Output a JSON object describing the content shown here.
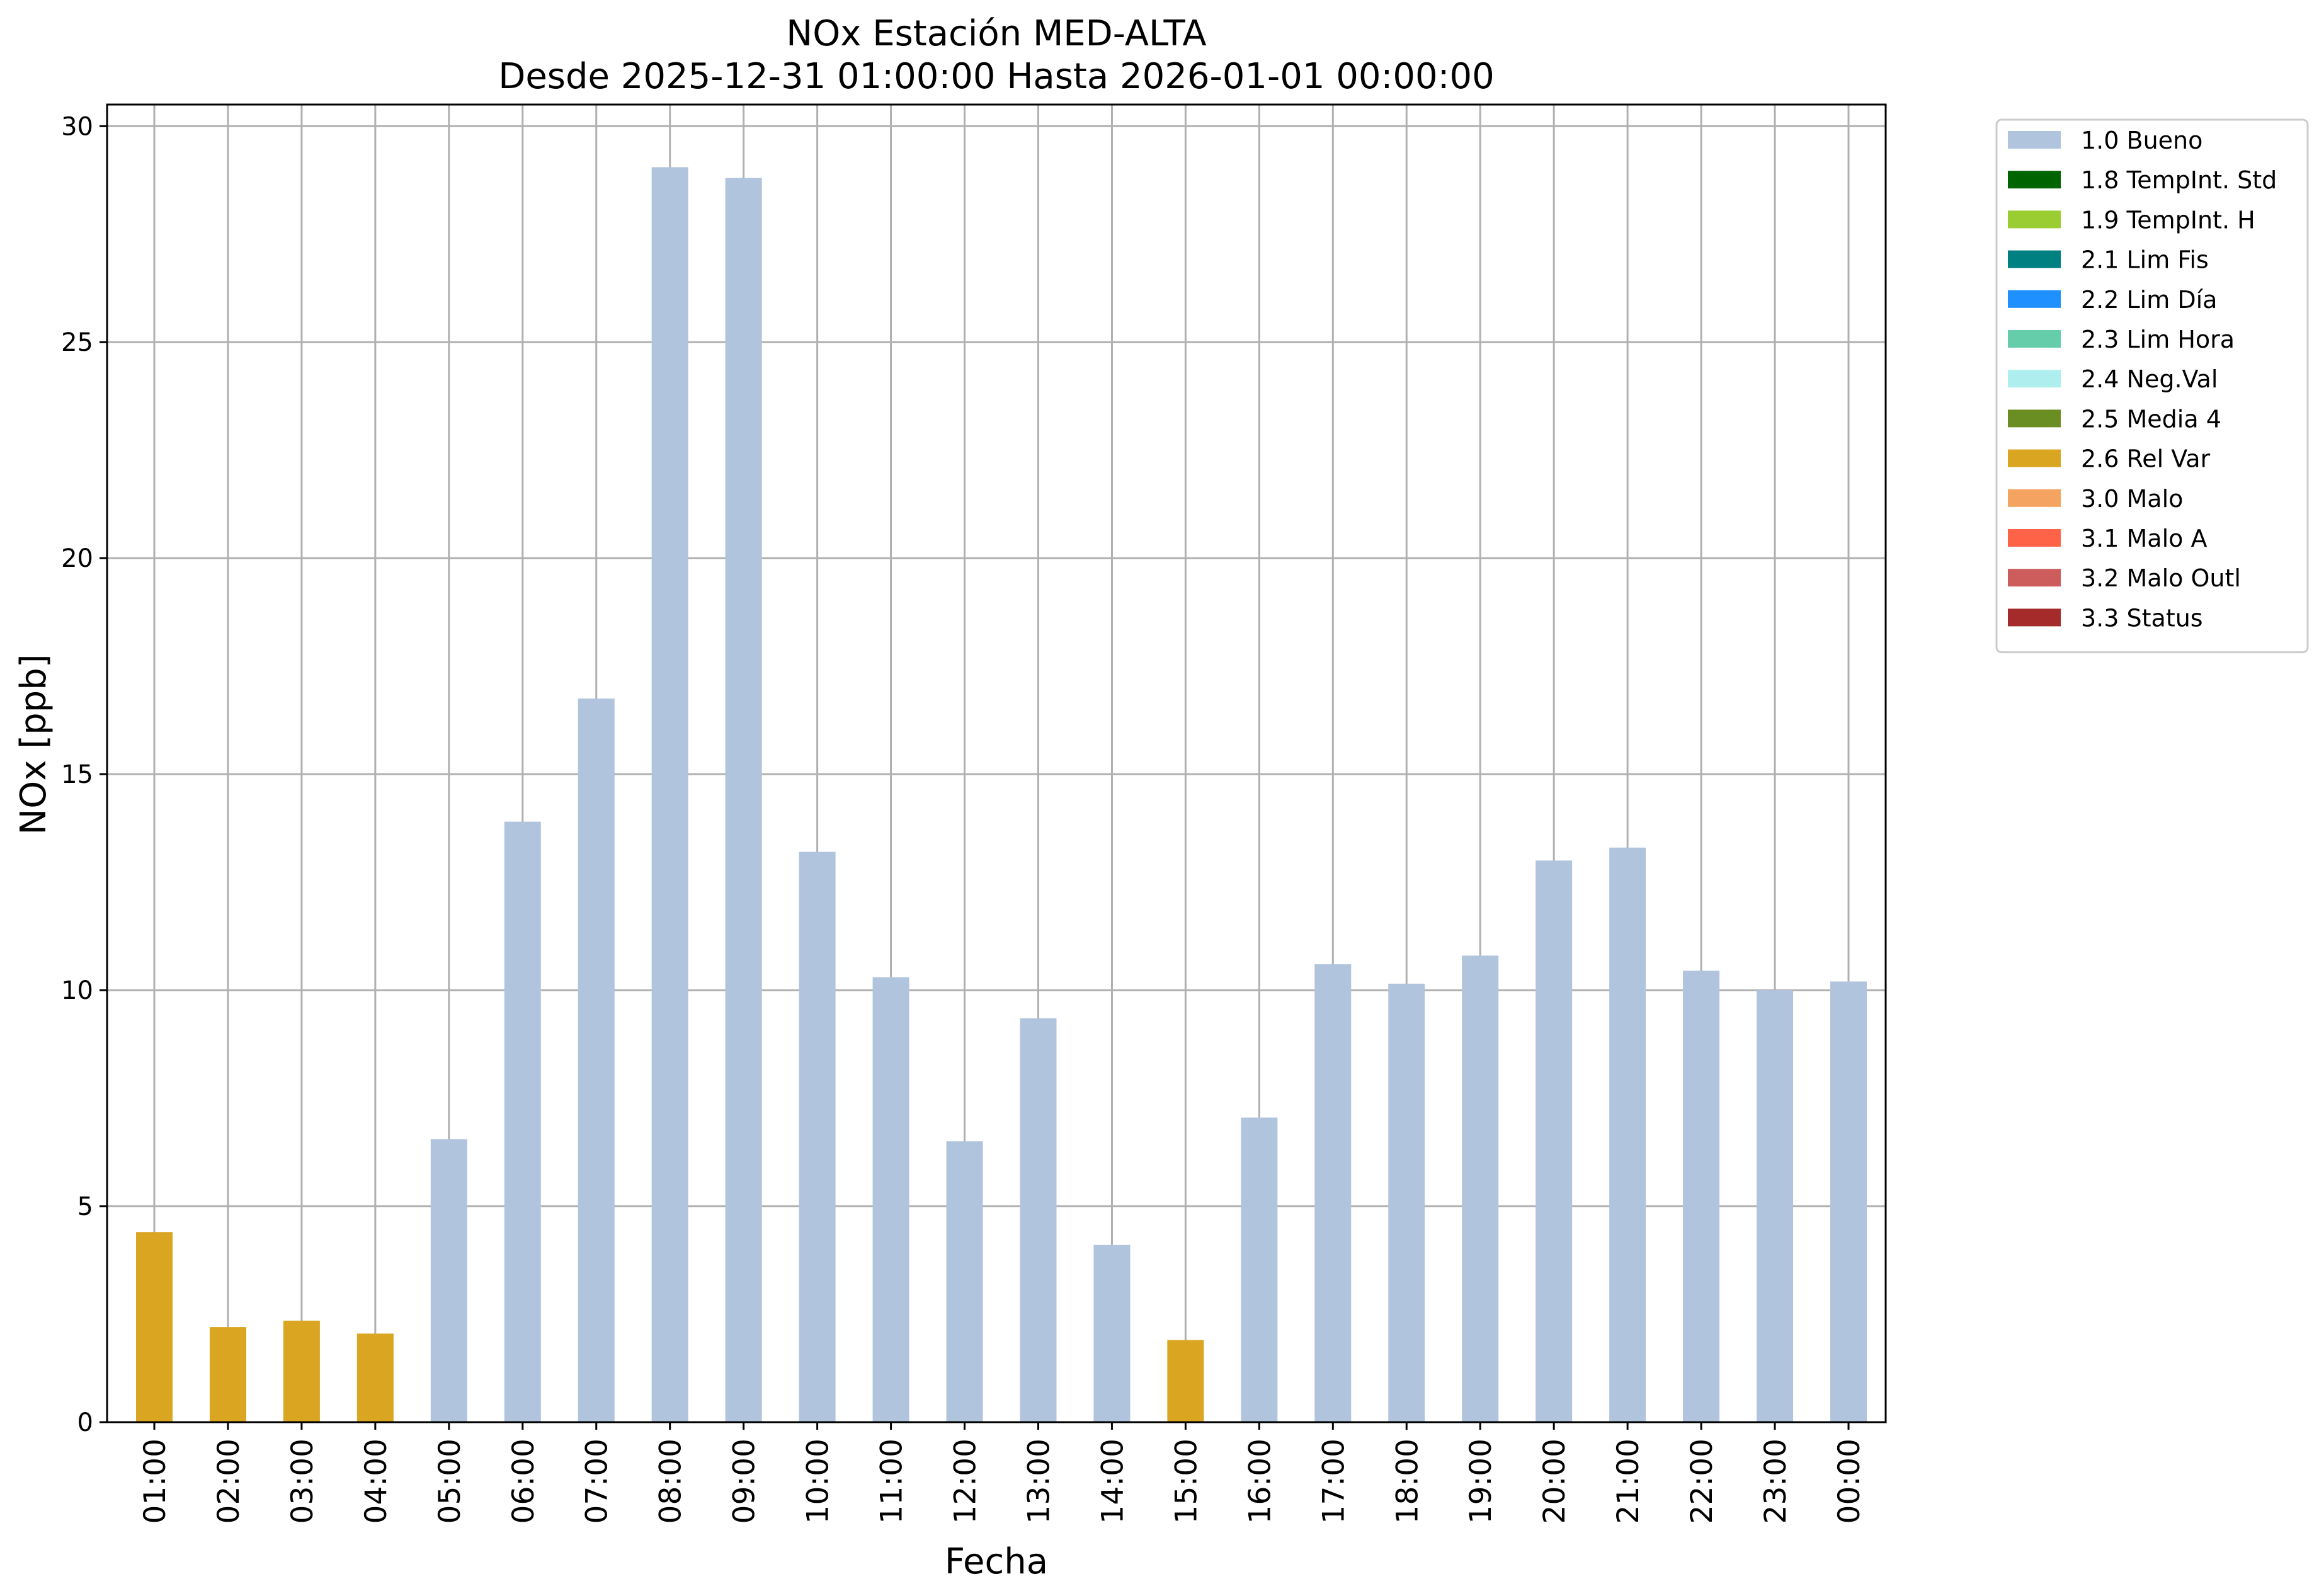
{
  "chart_data": {
    "type": "bar",
    "title": "NOx Estación MED-ALTA",
    "subtitle": "Desde 2025-12-31 01:00:00 Hasta 2026-01-01 00:00:00",
    "xlabel": "Fecha",
    "ylabel": "NOx [ppb]",
    "ylim": [
      0,
      30.5
    ],
    "yticks": [
      0,
      5,
      10,
      15,
      20,
      25,
      30
    ],
    "grid": true,
    "legend_position": "outside-right-top",
    "categories": [
      "01:00",
      "02:00",
      "03:00",
      "04:00",
      "05:00",
      "06:00",
      "07:00",
      "08:00",
      "09:00",
      "10:00",
      "11:00",
      "12:00",
      "13:00",
      "14:00",
      "15:00",
      "16:00",
      "17:00",
      "18:00",
      "19:00",
      "20:00",
      "21:00",
      "22:00",
      "23:00",
      "00:00"
    ],
    "values": [
      4.4,
      2.2,
      2.35,
      2.05,
      6.55,
      13.9,
      16.75,
      29.05,
      28.8,
      13.2,
      10.3,
      6.5,
      9.35,
      4.1,
      1.9,
      7.05,
      10.6,
      10.15,
      10.8,
      13.0,
      13.3,
      10.45,
      10.0,
      10.2
    ],
    "flags": [
      "2.6 Rel Var",
      "2.6 Rel Var",
      "2.6 Rel Var",
      "2.6 Rel Var",
      "1.0 Bueno",
      "1.0 Bueno",
      "1.0 Bueno",
      "1.0 Bueno",
      "1.0 Bueno",
      "1.0 Bueno",
      "1.0 Bueno",
      "1.0 Bueno",
      "1.0 Bueno",
      "1.0 Bueno",
      "2.6 Rel Var",
      "1.0 Bueno",
      "1.0 Bueno",
      "1.0 Bueno",
      "1.0 Bueno",
      "1.0 Bueno",
      "1.0 Bueno",
      "1.0 Bueno",
      "1.0 Bueno",
      "1.0 Bueno"
    ],
    "legend": [
      {
        "label": "1.0 Bueno",
        "color": "#b0c4de"
      },
      {
        "label": "1.8 TempInt. Std",
        "color": "#006400"
      },
      {
        "label": "1.9 TempInt. H",
        "color": "#9acd32"
      },
      {
        "label": "2.1 Lim Fis",
        "color": "#008080"
      },
      {
        "label": "2.2 Lim Día",
        "color": "#1e90ff"
      },
      {
        "label": "2.3 Lim Hora",
        "color": "#66cdaa"
      },
      {
        "label": "2.4 Neg.Val",
        "color": "#afeeee"
      },
      {
        "label": "2.5 Media 4",
        "color": "#6b8e23"
      },
      {
        "label": "2.6 Rel Var",
        "color": "#daa520"
      },
      {
        "label": "3.0 Malo",
        "color": "#f4a460"
      },
      {
        "label": "3.1 Malo A",
        "color": "#ff6347"
      },
      {
        "label": "3.2 Malo Outl",
        "color": "#cd5c5c"
      },
      {
        "label": "3.3 Status",
        "color": "#a52a2a"
      }
    ]
  }
}
